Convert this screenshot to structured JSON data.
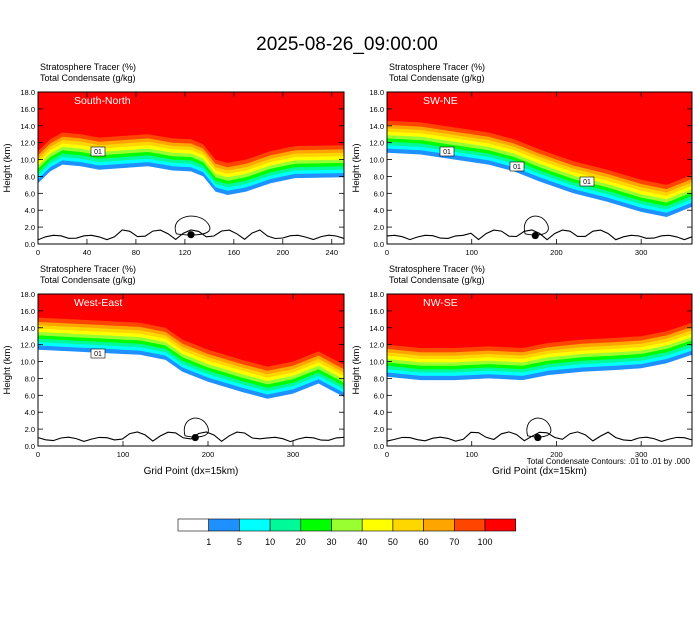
{
  "title": "2025-08-26_09:00:00",
  "footer_note": "Total Condensate Contours: .01 to .01 by .000",
  "colorbar": {
    "labels": [
      "1",
      "5",
      "10",
      "20",
      "30",
      "40",
      "50",
      "60",
      "70",
      "100"
    ],
    "colors": [
      "#ffffff",
      "#1e90ff",
      "#00ffff",
      "#00fa9a",
      "#00ff00",
      "#9aff30",
      "#ffff00",
      "#ffd700",
      "#ffa500",
      "#ff4500",
      "#ff0000"
    ]
  },
  "chart_data": [
    {
      "type": "heatmap",
      "panel_label": "South-North",
      "header_lines": [
        "Stratosphere Tracer   (%)",
        "Total Condensate   (g/kg)"
      ],
      "ylabel": "Height (km)",
      "xlabel": "",
      "xlim": [
        0,
        250
      ],
      "xticks": [
        "0",
        "40",
        "80",
        "120",
        "160",
        "200",
        "240"
      ],
      "ylim": [
        0,
        18
      ],
      "yticks": [
        "0.0",
        "2.0",
        "4.0",
        "6.0",
        "8.0",
        "10.0",
        "12.0",
        "14.0",
        "16.0",
        "18.0"
      ],
      "tropopause_km": [
        [
          0,
          11.0
        ],
        [
          10,
          12.4
        ],
        [
          20,
          13.2
        ],
        [
          35,
          13.0
        ],
        [
          50,
          12.6
        ],
        [
          70,
          12.8
        ],
        [
          90,
          13.0
        ],
        [
          110,
          12.5
        ],
        [
          125,
          12.4
        ],
        [
          135,
          11.8
        ],
        [
          145,
          10.0
        ],
        [
          155,
          9.6
        ],
        [
          170,
          10.0
        ],
        [
          190,
          11.0
        ],
        [
          210,
          11.6
        ],
        [
          250,
          11.7
        ]
      ],
      "contour_labels": [
        "01"
      ],
      "marker": {
        "x": 125,
        "height_km": 1.1
      }
    },
    {
      "type": "heatmap",
      "panel_label": "SW-NE",
      "header_lines": [
        "Stratosphere Tracer   (%)",
        "Total Condensate   (g/kg)"
      ],
      "ylabel": "Height (km)",
      "xlabel": "",
      "xlim": [
        0,
        360
      ],
      "xticks": [
        "0",
        "100",
        "200",
        "300"
      ],
      "ylim": [
        0,
        18
      ],
      "yticks": [
        "0.0",
        "2.0",
        "4.0",
        "6.0",
        "8.0",
        "10.0",
        "12.0",
        "14.0",
        "16.0",
        "18.0"
      ],
      "tropopause_km": [
        [
          0,
          14.6
        ],
        [
          40,
          14.4
        ],
        [
          80,
          13.8
        ],
        [
          120,
          13.2
        ],
        [
          150,
          12.4
        ],
        [
          180,
          11.2
        ],
        [
          220,
          9.8
        ],
        [
          260,
          8.8
        ],
        [
          300,
          7.6
        ],
        [
          330,
          7.0
        ],
        [
          360,
          8.2
        ]
      ],
      "contour_labels": [
        "01",
        "01",
        "01"
      ],
      "marker": {
        "x": 175,
        "height_km": 1.0
      }
    },
    {
      "type": "heatmap",
      "panel_label": "West-East",
      "header_lines": [
        "Stratosphere Tracer   (%)",
        "Total Condensate   (g/kg)"
      ],
      "ylabel": "Height (km)",
      "xlabel": "Grid Point (dx=15km)",
      "xlim": [
        0,
        360
      ],
      "xticks": [
        "0",
        "100",
        "200",
        "300"
      ],
      "ylim": [
        0,
        18
      ],
      "yticks": [
        "0.0",
        "2.0",
        "4.0",
        "6.0",
        "8.0",
        "10.0",
        "12.0",
        "14.0",
        "16.0",
        "18.0"
      ],
      "tropopause_km": [
        [
          0,
          15.2
        ],
        [
          40,
          15.0
        ],
        [
          80,
          14.8
        ],
        [
          120,
          14.6
        ],
        [
          150,
          14.0
        ],
        [
          170,
          12.6
        ],
        [
          200,
          11.4
        ],
        [
          240,
          10.2
        ],
        [
          270,
          9.4
        ],
        [
          300,
          10.0
        ],
        [
          330,
          11.2
        ],
        [
          360,
          9.6
        ]
      ],
      "contour_labels": [
        "01"
      ],
      "marker": {
        "x": 185,
        "height_km": 1.0
      }
    },
    {
      "type": "heatmap",
      "panel_label": "NW-SE",
      "header_lines": [
        "Stratosphere Tracer   (%)",
        "Total Condensate   (g/kg)"
      ],
      "ylabel": "Height (km)",
      "xlabel": "Grid Point (dx=15km)",
      "xlim": [
        0,
        360
      ],
      "xticks": [
        "0",
        "100",
        "200",
        "300"
      ],
      "ylim": [
        0,
        18
      ],
      "yticks": [
        "0.0",
        "2.0",
        "4.0",
        "6.0",
        "8.0",
        "10.0",
        "12.0",
        "14.0",
        "16.0",
        "18.0"
      ],
      "tropopause_km": [
        [
          0,
          12.0
        ],
        [
          40,
          11.6
        ],
        [
          80,
          11.6
        ],
        [
          120,
          11.8
        ],
        [
          160,
          11.6
        ],
        [
          190,
          12.2
        ],
        [
          230,
          12.6
        ],
        [
          270,
          12.8
        ],
        [
          300,
          13.0
        ],
        [
          330,
          13.6
        ],
        [
          360,
          14.6
        ]
      ],
      "contour_labels": [],
      "marker": {
        "x": 178,
        "height_km": 1.0
      }
    }
  ]
}
